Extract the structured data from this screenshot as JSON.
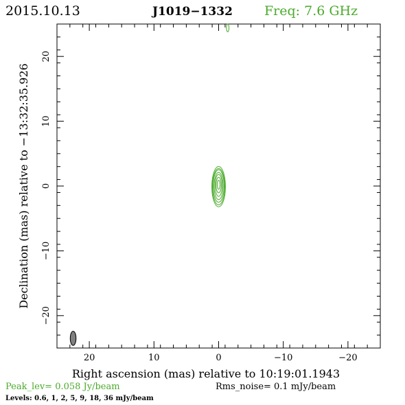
{
  "header": {
    "date": "2015.10.13",
    "source": "J1019−1332",
    "freq": "Freq: 7.6 GHz"
  },
  "colors": {
    "green": "#4aaa2a",
    "black": "#000000",
    "beam_fill": "#808080"
  },
  "footer": {
    "peak": "Peak_lev=  0.058 Jy/beam",
    "rms": "Rms_noise=  0.1 mJy/beam",
    "levels": "Levels: 0.6,   1,   2,   5,   9,  18,  36 mJy/beam"
  },
  "chart_data": {
    "type": "contour",
    "xlabel": "Right ascension (mas) relative to 10:19:01.1943",
    "ylabel": "Declination (mas) relative to −13:32:35.926",
    "xlim": [
      25,
      -25
    ],
    "ylim": [
      -25,
      25
    ],
    "xticks": [
      20,
      10,
      0,
      -10,
      -20
    ],
    "yticks": [
      20,
      10,
      0,
      -10,
      -20
    ],
    "xtick_labels": [
      "20",
      "10",
      "0",
      "−10",
      "−20"
    ],
    "ytick_labels": [
      "20",
      "10",
      "0",
      "−10",
      "−20"
    ],
    "contour_levels_mJy": [
      0.6,
      1,
      2,
      5,
      9,
      18,
      36
    ],
    "source_center": [
      0,
      0
    ],
    "contours": [
      {
        "level": 0.6,
        "x": 0,
        "y": -0.1,
        "rx": 1.05,
        "ry": 3.1
      },
      {
        "level": 1,
        "x": 0,
        "y": -0.1,
        "rx": 0.95,
        "ry": 2.8
      },
      {
        "level": 2,
        "x": 0,
        "y": 0,
        "rx": 0.85,
        "ry": 2.5
      },
      {
        "level": 5,
        "x": 0,
        "y": 0,
        "rx": 0.7,
        "ry": 2.1
      },
      {
        "level": 9,
        "x": 0,
        "y": 0.1,
        "rx": 0.55,
        "ry": 1.7
      },
      {
        "level": 18,
        "x": 0,
        "y": 0.15,
        "rx": 0.4,
        "ry": 1.2
      },
      {
        "level": 36,
        "x": 0,
        "y": 0.2,
        "rx": 0.22,
        "ry": 0.7
      }
    ],
    "noise_feature": {
      "x": -1.4,
      "y": 24.4,
      "rx": 0.2,
      "ry": 0.6
    },
    "beam": {
      "x": 22.5,
      "y": -23.5,
      "rx": 0.45,
      "ry": 1.1
    }
  }
}
